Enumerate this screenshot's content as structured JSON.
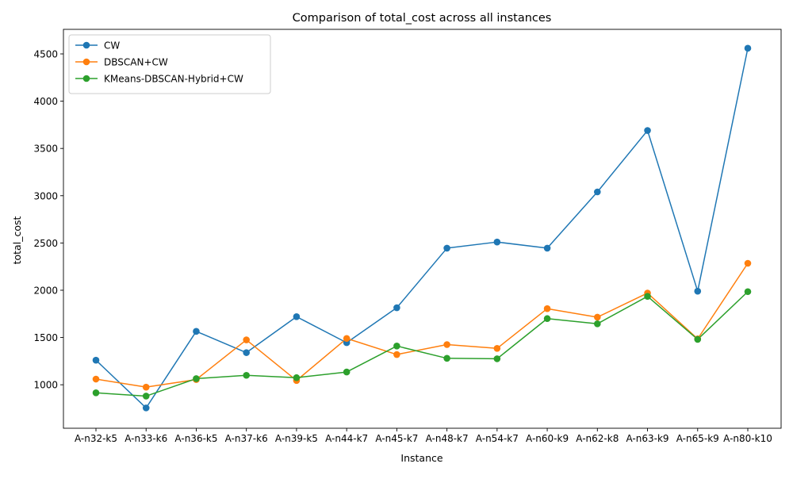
{
  "chart_data": {
    "type": "line",
    "title": "Comparison of total_cost across all instances",
    "xlabel": "Instance",
    "ylabel": "total_cost",
    "categories": [
      "A-n32-k5",
      "A-n33-k6",
      "A-n36-k5",
      "A-n37-k6",
      "A-n39-k5",
      "A-n44-k7",
      "A-n45-k7",
      "A-n48-k7",
      "A-n54-k7",
      "A-n60-k9",
      "A-n62-k8",
      "A-n63-k9",
      "A-n65-k9",
      "A-n80-k10"
    ],
    "ylim": [
      540,
      4760
    ],
    "yticks": [
      1000,
      1500,
      2000,
      2500,
      3000,
      3500,
      4000,
      4500
    ],
    "grid": false,
    "legend_position": "top-left",
    "series": [
      {
        "name": "CW",
        "color": "#1f77b4",
        "values": [
          1260,
          755,
          1565,
          1340,
          1720,
          1445,
          1815,
          2445,
          2510,
          2445,
          3040,
          3690,
          1990,
          4560
        ]
      },
      {
        "name": "DBSCAN+CW",
        "color": "#ff7f0e",
        "values": [
          1060,
          975,
          1055,
          1475,
          1045,
          1490,
          1320,
          1425,
          1385,
          1805,
          1715,
          1970,
          1485,
          2285
        ]
      },
      {
        "name": "KMeans-DBSCAN-Hybrid+CW",
        "color": "#2ca02c",
        "values": [
          915,
          880,
          1065,
          1100,
          1075,
          1135,
          1410,
          1280,
          1275,
          1700,
          1645,
          1935,
          1480,
          1985
        ]
      }
    ]
  }
}
